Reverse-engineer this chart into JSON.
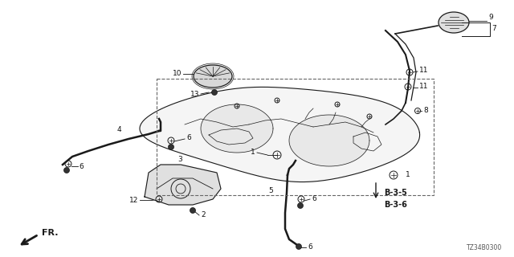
{
  "bg_color": "#ffffff",
  "diagram_code": "TZ34B0300",
  "line_color": "#1a1a1a",
  "label_color": "#111111",
  "label_fs": 6.5,
  "fig_w": 6.4,
  "fig_h": 3.2,
  "dpi": 100
}
